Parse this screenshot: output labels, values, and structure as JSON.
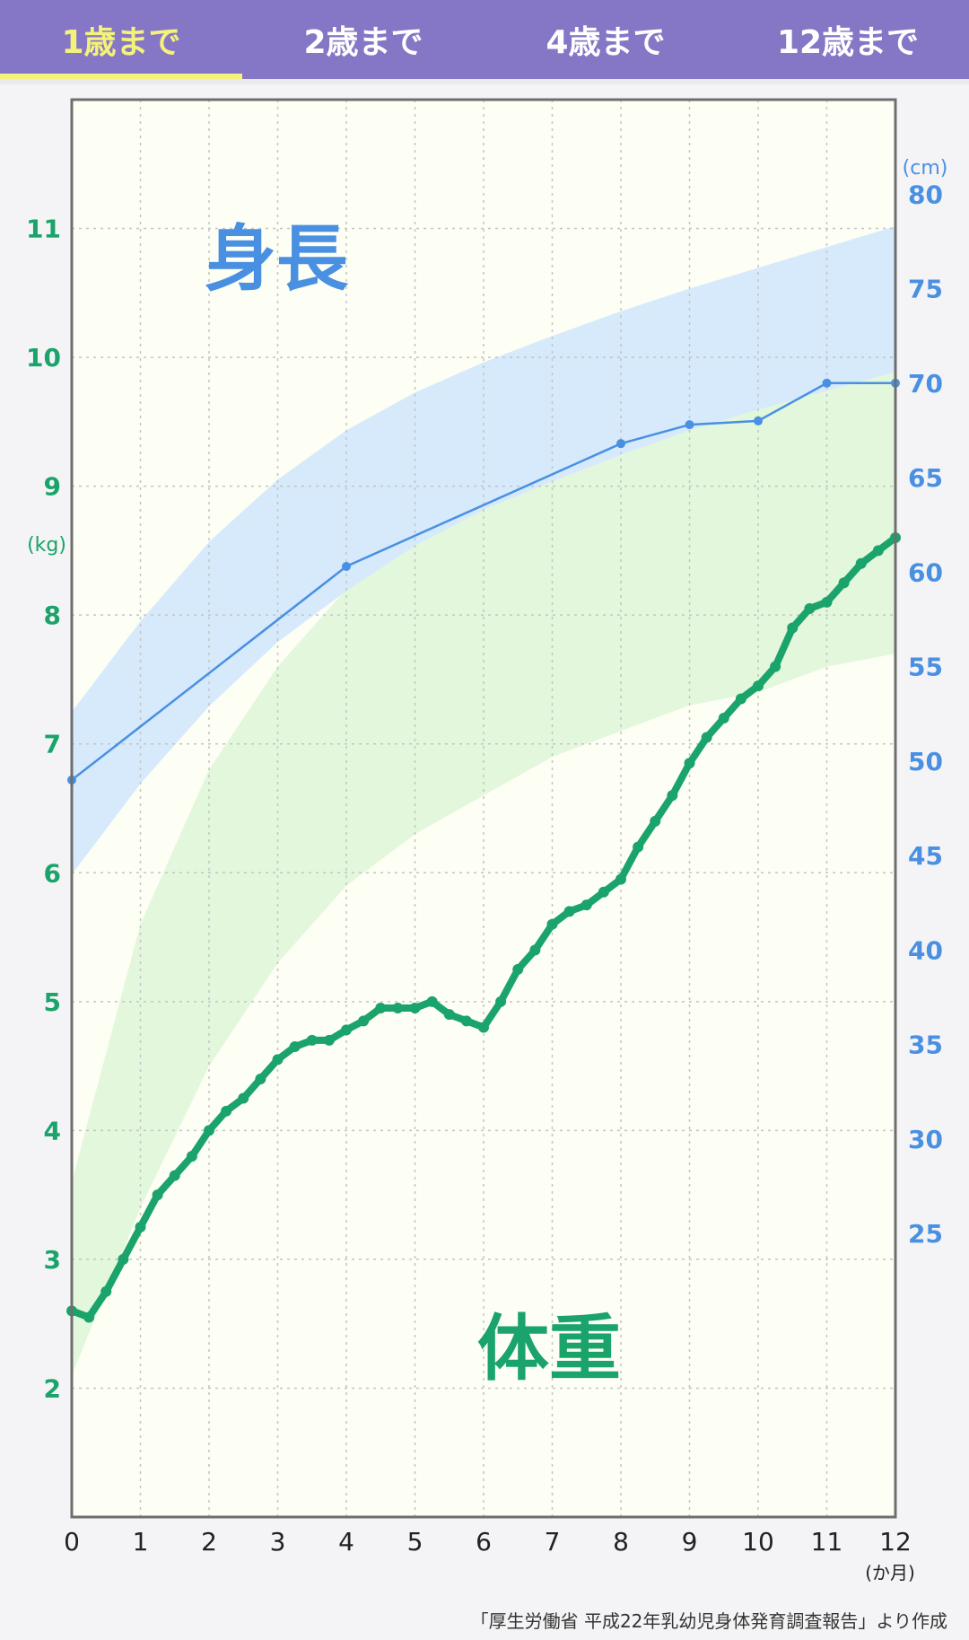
{
  "tabs": [
    {
      "label": "1歳まで",
      "active": true
    },
    {
      "label": "2歳まで",
      "active": false
    },
    {
      "label": "4歳まで",
      "active": false
    },
    {
      "label": "12歳まで",
      "active": false
    }
  ],
  "footer": {
    "source": "「厚生労働省 平成22年乳幼児身体発育調査報告」より作成"
  },
  "colors": {
    "tab_bg": "#8577c5",
    "tab_active": "#f4f27a",
    "height": "#4a90e2",
    "height_band": "#d6eafc",
    "weight": "#1aa36a",
    "weight_band": "#e3f7dc",
    "plot_bg": "#fdfef4"
  },
  "chart_data": {
    "type": "line",
    "grid": true,
    "x": {
      "unit": "(か月)",
      "min": 0,
      "max": 12,
      "ticks": [
        0,
        1,
        2,
        3,
        4,
        5,
        6,
        7,
        8,
        9,
        10,
        11,
        12
      ]
    },
    "y_left": {
      "unit": "(kg)",
      "min": 1,
      "max": 12,
      "ticks": [
        2,
        3,
        4,
        5,
        6,
        7,
        8,
        9,
        10,
        11
      ]
    },
    "y_right": {
      "unit": "(cm)",
      "min": 10,
      "max": 85,
      "ticks": [
        25,
        30,
        35,
        40,
        45,
        50,
        55,
        60,
        65,
        70,
        75,
        80
      ]
    },
    "height": {
      "label": "身長",
      "band_upper": [
        [
          0,
          52.6
        ],
        [
          1,
          57.4
        ],
        [
          2,
          61.6
        ],
        [
          3,
          64.9
        ],
        [
          4,
          67.5
        ],
        [
          5,
          69.5
        ],
        [
          6,
          71.1
        ],
        [
          7,
          72.5
        ],
        [
          8,
          73.8
        ],
        [
          9,
          75.0
        ],
        [
          10,
          76.1
        ],
        [
          11,
          77.2
        ],
        [
          12,
          78.3
        ]
      ],
      "band_lower": [
        [
          0,
          44.0
        ],
        [
          1,
          48.8
        ],
        [
          2,
          52.9
        ],
        [
          3,
          56.3
        ],
        [
          4,
          59.0
        ],
        [
          5,
          61.4
        ],
        [
          6,
          63.3
        ],
        [
          7,
          64.8
        ],
        [
          8,
          66.2
        ],
        [
          9,
          67.5
        ],
        [
          10,
          68.6
        ],
        [
          11,
          69.6
        ],
        [
          12,
          70.6
        ]
      ],
      "points": [
        [
          0,
          49.0
        ],
        [
          4,
          60.3
        ],
        [
          8,
          66.8
        ],
        [
          9,
          67.8
        ],
        [
          10,
          68.0
        ],
        [
          11,
          70.0
        ],
        [
          12,
          70.0
        ]
      ]
    },
    "weight": {
      "label": "体重",
      "band_upper": [
        [
          0,
          3.6
        ],
        [
          1,
          5.6
        ],
        [
          2,
          6.8
        ],
        [
          3,
          7.6
        ],
        [
          4,
          8.2
        ],
        [
          5,
          8.7
        ],
        [
          6,
          9.1
        ],
        [
          7,
          9.5
        ],
        [
          8,
          9.8
        ],
        [
          9,
          10.1
        ],
        [
          10,
          10.4
        ],
        [
          11,
          10.7
        ],
        [
          12,
          10.9
        ]
      ],
      "band_lower": [
        [
          0,
          2.1
        ],
        [
          1,
          3.4
        ],
        [
          2,
          4.5
        ],
        [
          3,
          5.3
        ],
        [
          4,
          5.9
        ],
        [
          5,
          6.3
        ],
        [
          6,
          6.6
        ],
        [
          7,
          6.9
        ],
        [
          8,
          7.1
        ],
        [
          9,
          7.3
        ],
        [
          10,
          7.4
        ],
        [
          11,
          7.6
        ],
        [
          12,
          7.7
        ]
      ],
      "points": [
        [
          0,
          2.6
        ],
        [
          0.25,
          2.55
        ],
        [
          0.5,
          2.75
        ],
        [
          0.75,
          3.0
        ],
        [
          1,
          3.25
        ],
        [
          1.25,
          3.5
        ],
        [
          1.5,
          3.65
        ],
        [
          1.75,
          3.8
        ],
        [
          2,
          4.0
        ],
        [
          2.25,
          4.15
        ],
        [
          2.5,
          4.25
        ],
        [
          2.75,
          4.4
        ],
        [
          3,
          4.55
        ],
        [
          3.25,
          4.65
        ],
        [
          3.5,
          4.7
        ],
        [
          3.75,
          4.7
        ],
        [
          4,
          4.78
        ],
        [
          4.25,
          4.85
        ],
        [
          4.5,
          4.95
        ],
        [
          4.75,
          4.95
        ],
        [
          5,
          4.95
        ],
        [
          5.25,
          5.0
        ],
        [
          5.5,
          4.9
        ],
        [
          5.75,
          4.85
        ],
        [
          6,
          4.8
        ],
        [
          6.25,
          5.0
        ],
        [
          6.5,
          5.25
        ],
        [
          6.75,
          5.4
        ],
        [
          7,
          5.6
        ],
        [
          7.25,
          5.7
        ],
        [
          7.5,
          5.75
        ],
        [
          7.75,
          5.85
        ],
        [
          8,
          5.95
        ],
        [
          8.25,
          6.2
        ],
        [
          8.5,
          6.4
        ],
        [
          8.75,
          6.6
        ],
        [
          9,
          6.85
        ],
        [
          9.25,
          7.05
        ],
        [
          9.5,
          7.2
        ],
        [
          9.75,
          7.35
        ],
        [
          10,
          7.45
        ],
        [
          10.25,
          7.6
        ],
        [
          10.5,
          7.9
        ],
        [
          10.75,
          8.05
        ],
        [
          11,
          8.1
        ],
        [
          11.25,
          8.25
        ],
        [
          11.5,
          8.4
        ],
        [
          11.75,
          8.5
        ],
        [
          12,
          8.6
        ]
      ]
    }
  }
}
